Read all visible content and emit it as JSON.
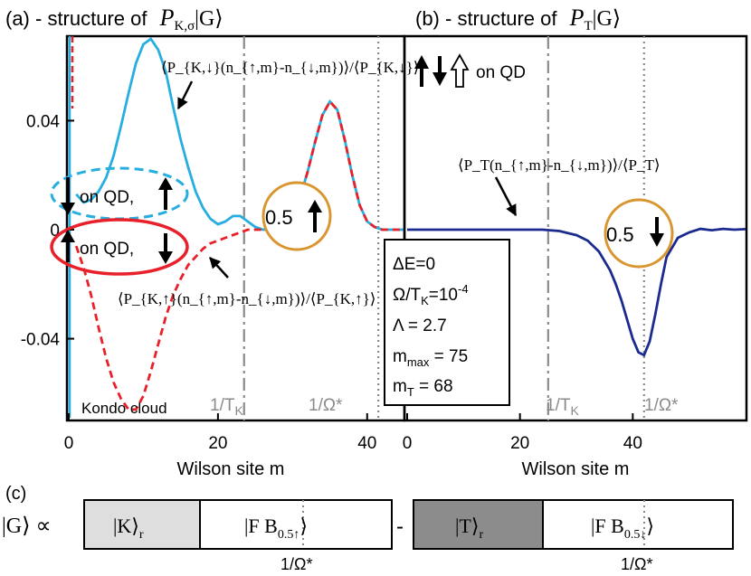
{
  "chart_data": [
    {
      "panel": "a",
      "type": "line",
      "title": "(a) - structure of P_{K,σ}|G⟩",
      "title_prefix": "(a) - structure of",
      "title_math": "P",
      "title_sub": "K,σ",
      "title_ket": "|G⟩",
      "xlabel": "Wilson site m",
      "ylabel": "",
      "xlim": [
        0,
        45
      ],
      "ylim": [
        -0.07,
        0.071
      ],
      "xticks": [
        0,
        20,
        40
      ],
      "yticks": [
        0.04,
        0,
        -0.04
      ],
      "ytick_labels": [
        "0.04",
        "0",
        "-0.04"
      ],
      "grid": false,
      "series": [
        {
          "name": "⟨P_{K,↓}(n_{↑,m}-n_{↓,m})⟩/⟨P_{K,↓}⟩",
          "color": "#27aee0",
          "style": "solid",
          "x": [
            1,
            2,
            3,
            4,
            5,
            6,
            7,
            8,
            9,
            10,
            11,
            12,
            13,
            14,
            15,
            16,
            17,
            18,
            19,
            20,
            21,
            22,
            23,
            24,
            25,
            26,
            27,
            28,
            29,
            30,
            31,
            32,
            33,
            34,
            35,
            36,
            37,
            38,
            39,
            40,
            41,
            42,
            43,
            44,
            45
          ],
          "y": [
            0.013,
            0.01,
            0.011,
            0.014,
            0.019,
            0.027,
            0.038,
            0.05,
            0.061,
            0.068,
            0.07,
            0.066,
            0.058,
            0.045,
            0.033,
            0.023,
            0.014,
            0.008,
            0.004,
            0.002,
            0.003,
            0.005,
            0.005,
            0.003,
            0.001,
            0.0,
            0.0,
            0.001,
            0.003,
            0.006,
            0.012,
            0.021,
            0.032,
            0.042,
            0.047,
            0.044,
            0.033,
            0.02,
            0.009,
            0.003,
            0.001,
            0.0,
            0.0,
            0.0,
            0.0
          ]
        },
        {
          "name": "⟨P_{K,↑}(n_{↑,m}-n_{↓,m})⟩/⟨P_{K,↑}⟩",
          "color": "#e8202a",
          "style": "dashed",
          "x": [
            1,
            2,
            3,
            4,
            5,
            6,
            7,
            8,
            9,
            10,
            11,
            12,
            13,
            14,
            15,
            16,
            17,
            18,
            19,
            20,
            21,
            22,
            23,
            24,
            25,
            26,
            27,
            28,
            29,
            30,
            31,
            32,
            33,
            34,
            35,
            36,
            37,
            38,
            39,
            40,
            41,
            42,
            43,
            44,
            45
          ],
          "y": [
            -0.006,
            -0.014,
            -0.024,
            -0.036,
            -0.047,
            -0.056,
            -0.062,
            -0.066,
            -0.066,
            -0.061,
            -0.052,
            -0.042,
            -0.032,
            -0.024,
            -0.018,
            -0.013,
            -0.01,
            -0.007,
            -0.005,
            -0.004,
            -0.003,
            -0.002,
            -0.001,
            0.0,
            0.0,
            0.0,
            0.0,
            0.001,
            0.003,
            0.006,
            0.012,
            0.021,
            0.032,
            0.042,
            0.047,
            0.044,
            0.033,
            0.02,
            0.009,
            0.003,
            0.001,
            0.0,
            0.0,
            0.0,
            0.0
          ]
        }
      ],
      "vlines": [
        {
          "x": 23.5,
          "label": "1/T",
          "label_sub": "K",
          "style": "dashdot"
        },
        {
          "x": 41.5,
          "label": "1/Ω*",
          "style": "dotted"
        }
      ],
      "annotations": {
        "blue_label": "⟨P_{K,↓}(n_{↑,m}-n_{↓,m})⟩/⟨P_{K,↓}⟩",
        "red_label": "⟨P_{K,↑}(n_{↑,m}-n_{↓,m})⟩/⟨P_{K,↑}⟩",
        "upper_ellipse_text": "on QD,",
        "lower_ellipse_text": "on QD,",
        "circle_text": "0.5",
        "kondo_cloud": "Kondo cloud"
      }
    },
    {
      "panel": "b",
      "type": "line",
      "title": "(b) - structure of P_T|G⟩",
      "title_prefix": "(b) - structure of",
      "title_math": "P",
      "title_sub": "T",
      "title_ket": "|G⟩",
      "xlabel": "Wilson site m",
      "ylabel": "",
      "xlim": [
        0,
        60
      ],
      "ylim": [
        -0.07,
        0.071
      ],
      "xticks": [
        0,
        20,
        40
      ],
      "grid": false,
      "series": [
        {
          "name": "⟨P_T(n_{↑,m}-n_{↓,m})⟩/⟨P_T⟩",
          "color": "#1b2a8f",
          "style": "solid",
          "x": [
            0,
            4,
            8,
            12,
            16,
            20,
            24,
            27,
            30,
            32,
            34,
            36,
            37,
            38,
            39,
            40,
            41,
            42,
            43,
            44,
            45,
            46,
            48,
            50,
            52,
            54,
            56,
            58,
            60
          ],
          "y": [
            0,
            0,
            0,
            0,
            0,
            0,
            0,
            -0.0005,
            -0.002,
            -0.004,
            -0.008,
            -0.015,
            -0.02,
            -0.026,
            -0.033,
            -0.04,
            -0.045,
            -0.046,
            -0.041,
            -0.031,
            -0.02,
            -0.01,
            -0.003,
            -0.001,
            0.0003,
            -0.0002,
            0.0003,
            0.0,
            0.0002
          ]
        }
      ],
      "vlines": [
        {
          "x": 25,
          "label": "1/T",
          "label_sub": "K",
          "style": "dashdot"
        },
        {
          "x": 42,
          "label": "1/Ω*",
          "style": "dotted"
        }
      ],
      "annotations": {
        "header": "on QD",
        "curve_label": "⟨P_T(n_{↑,m}-n_{↓,m})⟩/⟨P_T⟩",
        "circle_text": "0.5"
      }
    }
  ],
  "params_box": {
    "delta_e": "ΔE=0",
    "omega_prefix": "Ω/T",
    "omega_sub": "K",
    "omega_mid": "=10",
    "omega_sup": "-4",
    "lambda": "Λ = 2.7",
    "mmax_prefix": "m",
    "mmax_sub": "max",
    "mmax_suffix": " = 75",
    "mt_prefix": "m",
    "mt_sub": "T",
    "mt_suffix": " = 68"
  },
  "panel_c": {
    "label": "(c)",
    "lhs": "|G⟩ ∝",
    "box1_left": "|K⟩",
    "box1_left_sub": "r",
    "box1_right": "|F B",
    "box1_right_sub": "0.5↑",
    "box1_right_end": "⟩",
    "minus": "-",
    "box2_left": "|T⟩",
    "box2_left_sub": "r",
    "box2_right": "|F B",
    "box2_right_sub": "0.5↓",
    "box2_right_end": "⟩",
    "mark1": "1/Ω*",
    "mark2": "1/Ω*"
  },
  "colors": {
    "blue": "#27aee0",
    "red": "#e8202a",
    "navy": "#1b2a8f",
    "orange": "#d9952e",
    "gray": "#8a8a8a",
    "gray_fill_light": "#dedede",
    "gray_fill_dark": "#8c8c8c"
  }
}
